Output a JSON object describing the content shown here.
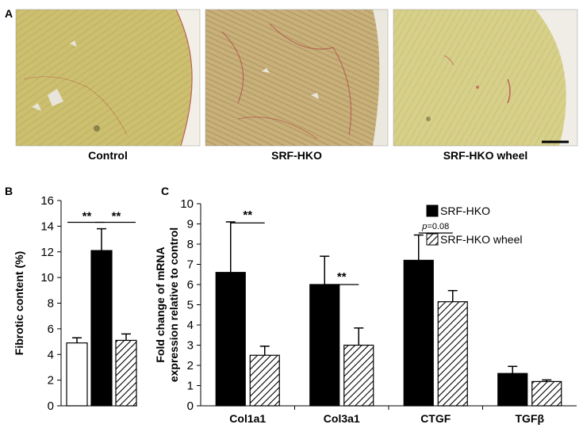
{
  "panel_a": {
    "label": "A",
    "images": [
      {
        "caption": "Control",
        "tissue_color": "#ccc070",
        "stain_color": "#b0303a"
      },
      {
        "caption": "SRF-HKO",
        "tissue_color": "#c8b07a",
        "stain_color": "#a83038"
      },
      {
        "caption": "SRF-HKO wheel",
        "tissue_color": "#d7d08a",
        "stain_color": "#b63a48"
      }
    ]
  },
  "panel_b": {
    "label": "B"
  },
  "panel_c": {
    "label": "C"
  },
  "chart_data": [
    {
      "type": "bar",
      "ylabel": "Fibrotic content (%)",
      "ylim": [
        0,
        16
      ],
      "yticks": [
        0,
        2,
        4,
        6,
        8,
        10,
        12,
        14,
        16
      ],
      "bars": [
        {
          "group": "Control",
          "value": 4.9,
          "error": 0.4,
          "fill": "white"
        },
        {
          "group": "SRF-HKO",
          "value": 12.1,
          "error": 1.7,
          "fill": "black"
        },
        {
          "group": "SRF-HKO wheel",
          "value": 5.1,
          "error": 0.5,
          "fill": "hatched"
        }
      ],
      "annotations": [
        {
          "text": "**",
          "from": 0,
          "to": 1,
          "y": 14.3
        },
        {
          "text": "**",
          "from": 1,
          "to": 2,
          "y": 14.3
        }
      ]
    },
    {
      "type": "bar",
      "ylabel_line1": "Fold change of mRNA",
      "ylabel_line2": "expression relative to control",
      "ylim": [
        0,
        10
      ],
      "yticks": [
        0,
        1,
        2,
        3,
        4,
        5,
        6,
        7,
        8,
        9,
        10
      ],
      "categories": [
        "Col1a1",
        "Col3a1",
        "CTGF",
        "TGFβ"
      ],
      "series": [
        {
          "name": "SRF-HKO",
          "fill": "black",
          "values": [
            6.6,
            6.0,
            7.2,
            1.6
          ],
          "errors": [
            2.5,
            1.4,
            1.25,
            0.35
          ]
        },
        {
          "name": "SRF-HKO wheel",
          "fill": "hatched",
          "values": [
            2.5,
            3.0,
            5.15,
            1.2
          ],
          "errors": [
            0.45,
            0.85,
            0.55,
            0.08
          ]
        }
      ],
      "annotations": [
        {
          "category": 0,
          "text": "**",
          "y": 9.05
        },
        {
          "category": 1,
          "text": "**",
          "y": 6.0
        },
        {
          "category": 2,
          "text_italic": "p",
          "text_rest": "=0.08",
          "y": 8.55
        }
      ]
    }
  ]
}
